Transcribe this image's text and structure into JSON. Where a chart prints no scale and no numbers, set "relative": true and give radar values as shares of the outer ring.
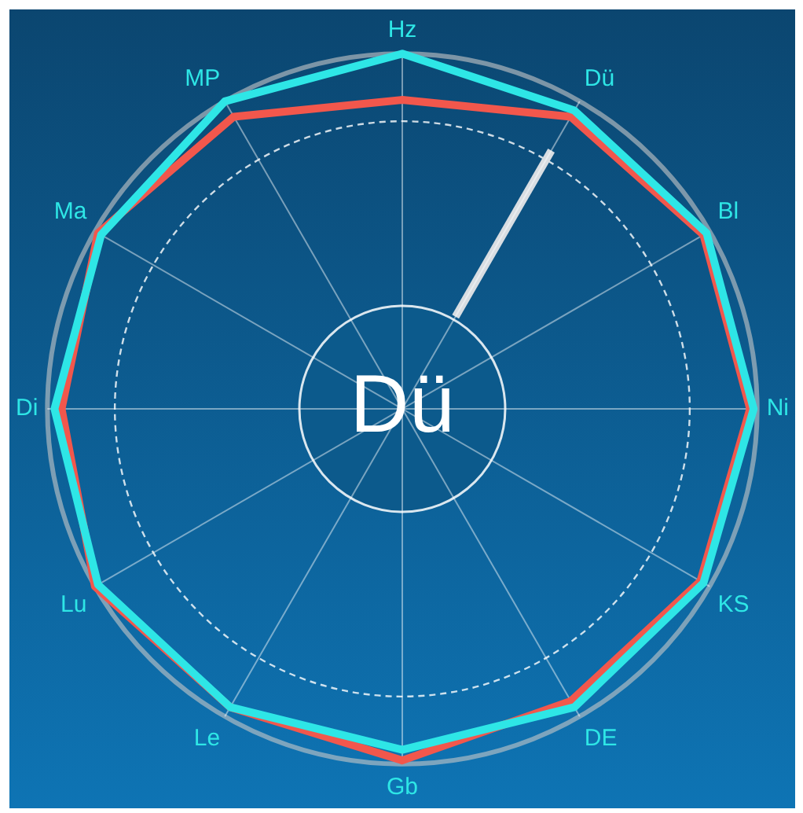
{
  "chart_data": {
    "type": "radar",
    "relative": true,
    "categories": [
      "Hz",
      "Dü",
      "Bl",
      "Ni",
      "KS",
      "DE",
      "Gb",
      "Le",
      "Lu",
      "Di",
      "Ma",
      "MP"
    ],
    "series": [
      {
        "color": "#2ee6e6",
        "values": [
          1.0,
          0.97,
          0.99,
          0.99,
          0.98,
          0.97,
          0.96,
          0.97,
          0.99,
          0.98,
          0.98,
          1.0
        ]
      },
      {
        "color": "#f2574c",
        "values": [
          0.87,
          0.95,
          0.98,
          0.98,
          0.97,
          0.95,
          0.99,
          0.97,
          1.0,
          0.96,
          0.99,
          0.95
        ]
      }
    ],
    "annotations": [
      "Dü"
    ],
    "marker": "none",
    "line_style": "solid",
    "legend": false
  }
}
